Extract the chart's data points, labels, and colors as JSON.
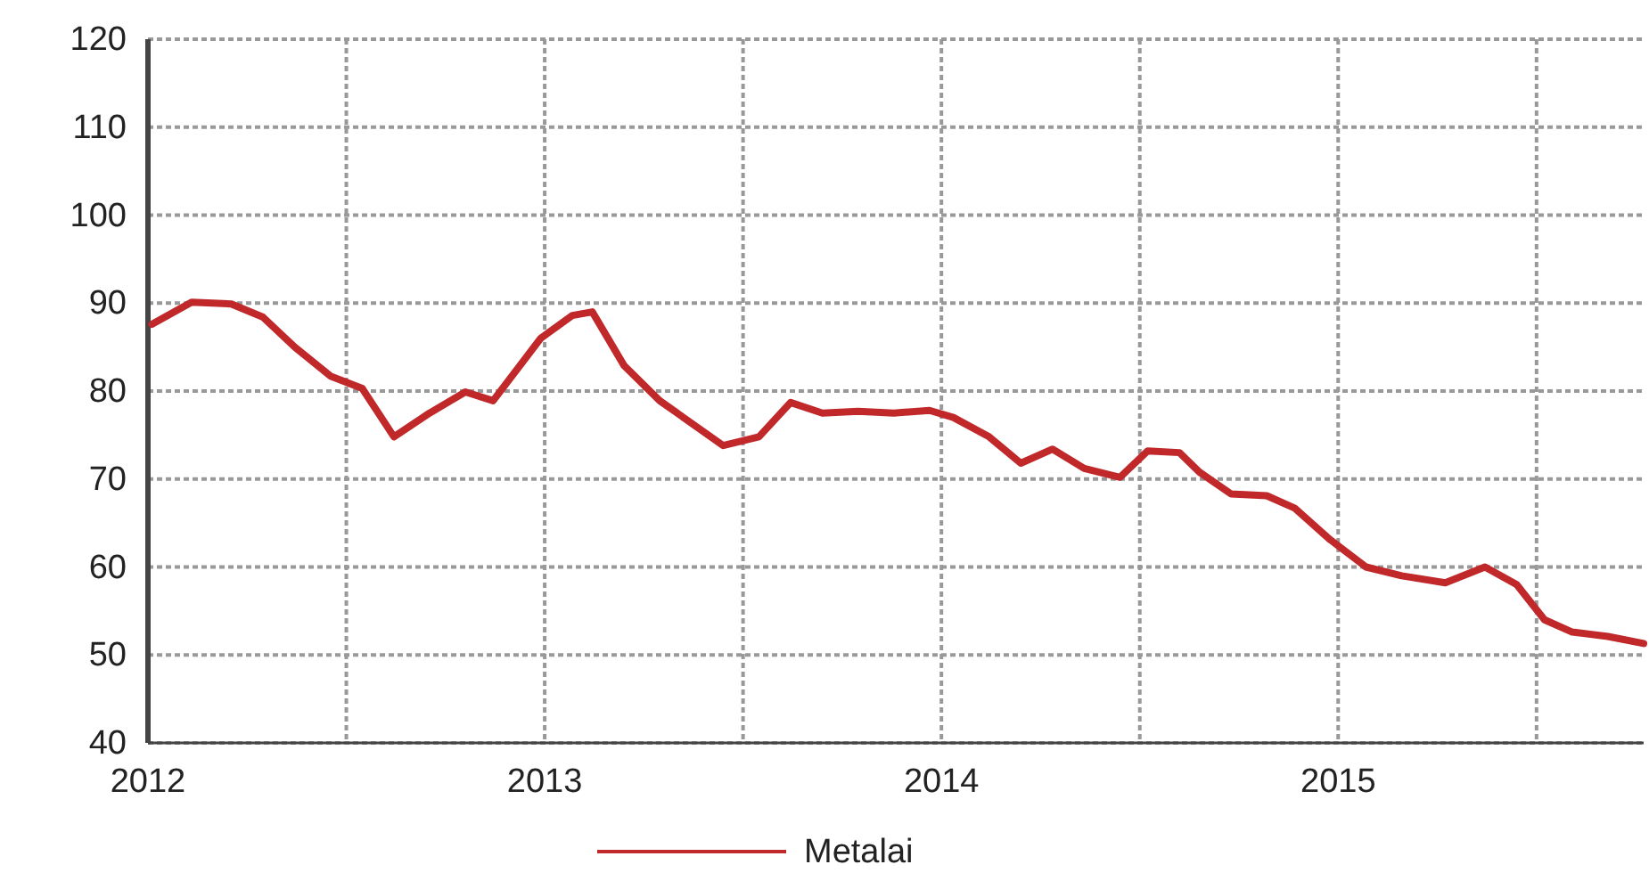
{
  "chart_data": {
    "type": "line",
    "x": [
      2012.01,
      2012.11,
      2012.21,
      2012.29,
      2012.37,
      2012.46,
      2012.54,
      2012.62,
      2012.71,
      2012.8,
      2012.87,
      2012.99,
      2013.07,
      2013.12,
      2013.2,
      2013.29,
      2013.45,
      2013.54,
      2013.62,
      2013.7,
      2013.79,
      2013.88,
      2013.97,
      2014.03,
      2014.12,
      2014.2,
      2014.28,
      2014.36,
      2014.45,
      2014.52,
      2014.6,
      2014.65,
      2014.73,
      2014.82,
      2014.89,
      2014.98,
      2015.07,
      2015.16,
      2015.27,
      2015.37,
      2015.45,
      2015.52,
      2015.59,
      2015.68,
      2015.77
    ],
    "series": [
      {
        "name": "Metalai",
        "color": "#c0282a",
        "values": [
          87.6,
          90.1,
          89.9,
          88.4,
          85,
          81.7,
          80.3,
          74.8,
          77.5,
          79.9,
          78.9,
          86,
          88.6,
          89,
          82.9,
          78.9,
          73.8,
          74.8,
          78.7,
          77.5,
          77.7,
          77.5,
          77.8,
          77,
          74.8,
          71.8,
          73.4,
          71.2,
          70.2,
          73.2,
          73,
          70.8,
          68.3,
          68.1,
          66.7,
          63.1,
          60,
          59,
          58.2,
          60,
          58,
          54,
          52.6,
          52.1,
          51.3
        ]
      }
    ],
    "xlim": [
      2012,
      2015.77
    ],
    "xticks": [
      2012,
      {
        "value": 2012.5,
        "label": null
      },
      2013,
      {
        "value": 2013.5,
        "label": null
      },
      2014,
      {
        "value": 2014.5,
        "label": null
      },
      2015,
      {
        "value": 2015.5,
        "label": null
      }
    ],
    "ylim": [
      40,
      120
    ],
    "yticks": [
      40,
      50,
      60,
      70,
      80,
      90,
      100,
      110,
      120
    ],
    "grid": true,
    "legend": "bottom",
    "marker": "none",
    "line_style": "solid"
  }
}
